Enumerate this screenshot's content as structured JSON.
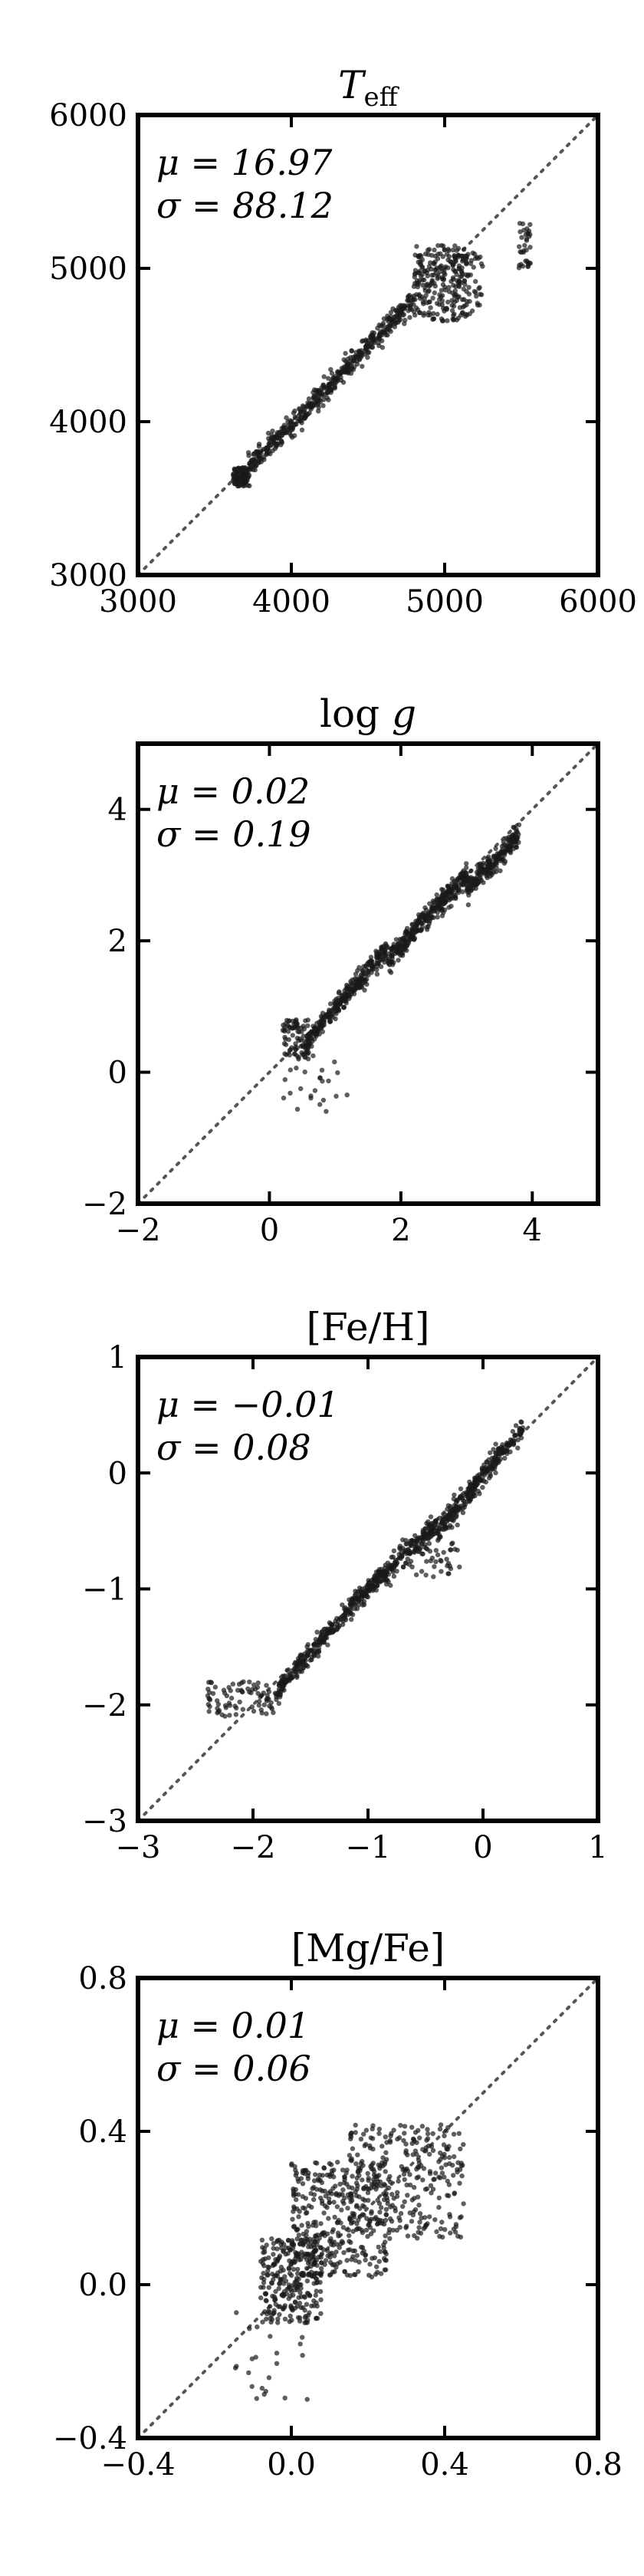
{
  "chart_data": [
    {
      "type": "scatter",
      "title": "T_eff",
      "stats": {
        "mu": "μ = 16.97",
        "sigma": "σ = 88.12"
      },
      "xlim": [
        3000,
        6000
      ],
      "ylim": [
        3000,
        6000
      ],
      "xticks": [
        "3000",
        "4000",
        "5000",
        "6000"
      ],
      "yticks": [
        "3000",
        "4000",
        "5000",
        "6000"
      ],
      "diagonal": true,
      "clusters": [
        {
          "x": [
            3620,
            3720
          ],
          "y": [
            3580,
            3700
          ],
          "n": 120
        },
        {
          "x": [
            3720,
            4300
          ],
          "y": [
            3700,
            4280
          ],
          "n": 260,
          "band": true
        },
        {
          "x": [
            4300,
            4800
          ],
          "y": [
            4280,
            4800
          ],
          "n": 220,
          "band": true
        },
        {
          "x": [
            4800,
            5150
          ],
          "y": [
            4650,
            5150
          ],
          "n": 220
        },
        {
          "x": [
            5050,
            5250
          ],
          "y": [
            4700,
            5100
          ],
          "n": 60
        },
        {
          "x": [
            5480,
            5560
          ],
          "y": [
            5000,
            5300
          ],
          "n": 35
        }
      ]
    },
    {
      "type": "scatter",
      "title": "log g",
      "stats": {
        "mu": "μ = 0.02",
        "sigma": "σ = 0.19"
      },
      "xlim": [
        -2,
        5
      ],
      "ylim": [
        -2,
        5
      ],
      "xticks": [
        "−2",
        "0",
        "2",
        "4"
      ],
      "yticks": [
        "−2",
        "0",
        "2",
        "4"
      ],
      "diagonal": true,
      "clusters": [
        {
          "x": [
            0.2,
            0.6
          ],
          "y": [
            0.2,
            0.8
          ],
          "n": 90
        },
        {
          "x": [
            0.6,
            1.8
          ],
          "y": [
            0.5,
            1.9
          ],
          "n": 280,
          "band": true
        },
        {
          "x": [
            1.8,
            3.0
          ],
          "y": [
            1.7,
            3.0
          ],
          "n": 320,
          "band": true
        },
        {
          "x": [
            3.0,
            3.8
          ],
          "y": [
            2.8,
            3.6
          ],
          "n": 220,
          "band": true
        },
        {
          "x": [
            0.2,
            1.2
          ],
          "y": [
            -0.6,
            0.3
          ],
          "n": 25
        }
      ]
    },
    {
      "type": "scatter",
      "title": "[Fe/H]",
      "stats": {
        "mu": "μ = −0.01",
        "sigma": "σ = 0.08"
      },
      "xlim": [
        -3,
        1
      ],
      "ylim": [
        -3,
        1
      ],
      "xticks": [
        "−3",
        "−2",
        "−1",
        "0",
        "1"
      ],
      "yticks": [
        "−3",
        "−2",
        "−1",
        "0",
        "1"
      ],
      "diagonal": true,
      "clusters": [
        {
          "x": [
            -2.4,
            -1.8
          ],
          "y": [
            -2.1,
            -1.8
          ],
          "n": 80
        },
        {
          "x": [
            -1.8,
            -1.1
          ],
          "y": [
            -1.9,
            -1.1
          ],
          "n": 240,
          "band": true
        },
        {
          "x": [
            -1.1,
            -0.4
          ],
          "y": [
            -1.1,
            -0.45
          ],
          "n": 260,
          "band": true
        },
        {
          "x": [
            -0.4,
            0.35
          ],
          "y": [
            -0.5,
            0.4
          ],
          "n": 300,
          "band": true
        },
        {
          "x": [
            -0.6,
            -0.2
          ],
          "y": [
            -0.9,
            -0.6
          ],
          "n": 40
        }
      ]
    },
    {
      "type": "scatter",
      "title": "[Mg/Fe]",
      "stats": {
        "mu": "μ = 0.01",
        "sigma": "σ = 0.06"
      },
      "xlim": [
        -0.4,
        0.8
      ],
      "ylim": [
        -0.4,
        0.8
      ],
      "xticks": [
        "−0.4",
        "0.0",
        "0.4",
        "0.8"
      ],
      "yticks": [
        "−0.4",
        "0.0",
        "0.4",
        "0.8"
      ],
      "diagonal": true,
      "clusters": [
        {
          "x": [
            -0.08,
            0.08
          ],
          "y": [
            -0.1,
            0.12
          ],
          "n": 260
        },
        {
          "x": [
            0.0,
            0.25
          ],
          "y": [
            0.02,
            0.32
          ],
          "n": 360
        },
        {
          "x": [
            0.15,
            0.45
          ],
          "y": [
            0.12,
            0.42
          ],
          "n": 280
        },
        {
          "x": [
            -0.15,
            0.05
          ],
          "y": [
            -0.3,
            -0.05
          ],
          "n": 25
        }
      ]
    }
  ]
}
